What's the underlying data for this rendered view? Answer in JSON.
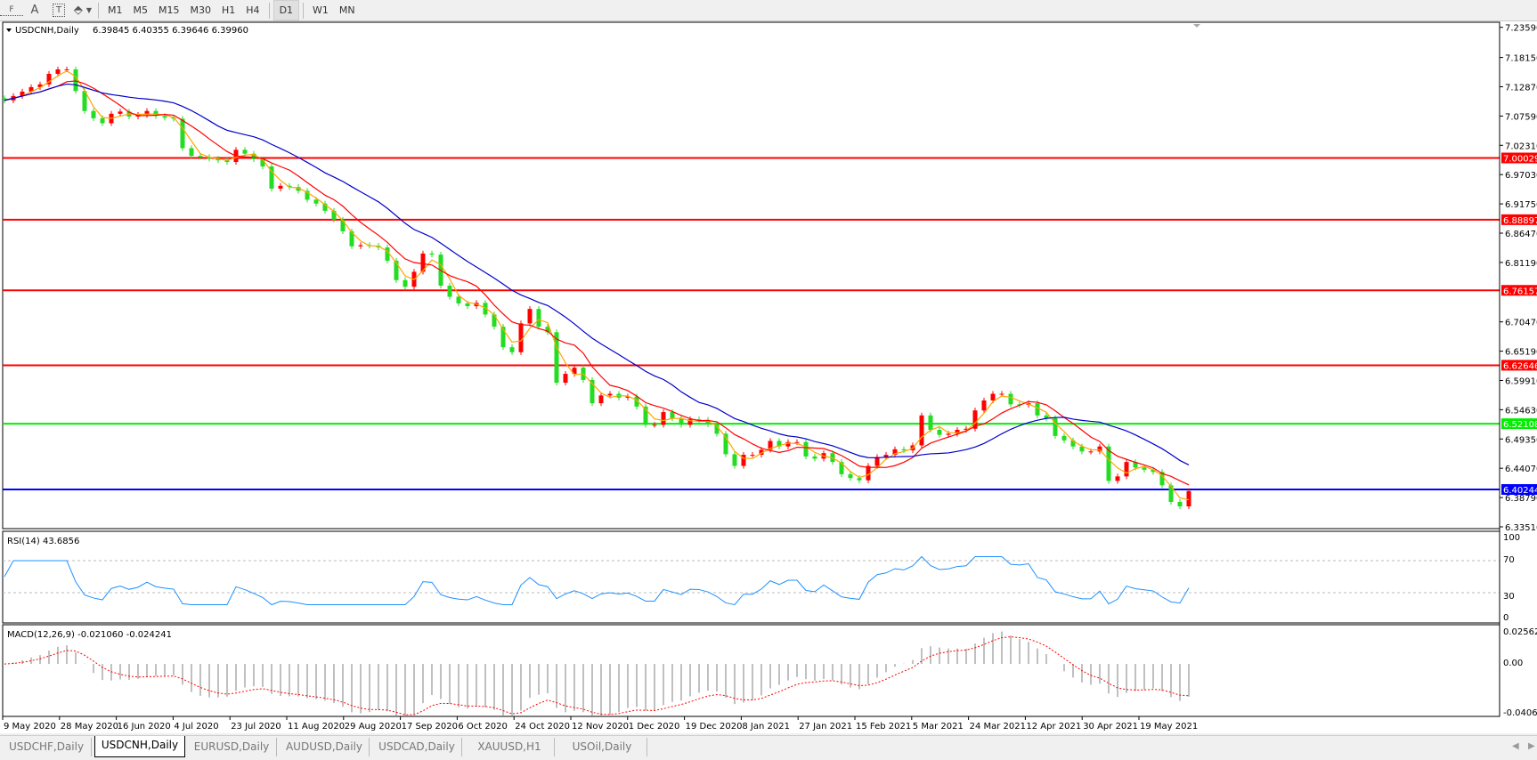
{
  "toolbar": {
    "tools": [
      {
        "icon": "text-label-icon",
        "glyph": "F"
      },
      {
        "icon": "text-icon",
        "glyph": "A"
      },
      {
        "icon": "text-box-icon",
        "glyph": "T"
      },
      {
        "icon": "arrows-icon",
        "glyph": "⬘"
      }
    ],
    "timeframes": [
      "M1",
      "M5",
      "M15",
      "M30",
      "H1",
      "H4",
      "D1",
      "W1",
      "MN"
    ],
    "active_timeframe": "D1"
  },
  "chart_header": {
    "symbol": "USDCNH,Daily",
    "ohlc": "6.39845 6.40355 6.39646 6.39960"
  },
  "colors": {
    "bull_candle": "#ff0000",
    "bear_candle": "#22dd22",
    "ma_fast": "#ffa500",
    "ma_mid": "#ff0000",
    "ma_slow": "#0000cc",
    "rsi_line": "#1e90ff",
    "macd_hist": "#c0c0c0",
    "macd_signal": "#ff0000"
  },
  "chart_data": {
    "type": "candlestick",
    "symbol": "USDCNH",
    "timeframe": "Daily",
    "close_sampled_every_2_bars": [
      7.104,
      7.112,
      7.12,
      7.128,
      7.133,
      7.152,
      7.16,
      7.16,
      7.121,
      7.085,
      7.072,
      7.063,
      7.08,
      7.084,
      7.075,
      7.078,
      7.085,
      7.076,
      7.073,
      7.071,
      7.018,
      7.004,
      7.002,
      6.999,
      6.996,
      6.993,
      7.015,
      7.008,
      6.998,
      6.985,
      6.945,
      6.95,
      6.948,
      6.941,
      6.925,
      6.918,
      6.905,
      6.889,
      6.868,
      6.841,
      6.843,
      6.842,
      6.839,
      6.815,
      6.78,
      6.768,
      6.795,
      6.828,
      6.826,
      6.77,
      6.75,
      6.738,
      6.733,
      6.739,
      6.718,
      6.696,
      6.659,
      6.65,
      6.702,
      6.728,
      6.696,
      6.686,
      6.595,
      6.611,
      6.622,
      6.6,
      6.558,
      6.572,
      6.575,
      6.568,
      6.57,
      6.552,
      6.519,
      6.519,
      6.542,
      6.531,
      6.519,
      6.529,
      6.528,
      6.52,
      6.503,
      6.466,
      6.445,
      6.465,
      6.465,
      6.474,
      6.49,
      6.48,
      6.488,
      6.488,
      6.462,
      6.458,
      6.468,
      6.452,
      6.43,
      6.423,
      6.419,
      6.445,
      6.461,
      6.465,
      6.475,
      6.473,
      6.482,
      6.536,
      6.51,
      6.501,
      6.503,
      6.51,
      6.512,
      6.545,
      6.563,
      6.575,
      6.575,
      6.556,
      6.555,
      6.558,
      6.536,
      6.531,
      6.499,
      6.491,
      6.48,
      6.471,
      6.471,
      6.48,
      6.418,
      6.426,
      6.452,
      6.442,
      6.438,
      6.434,
      6.41,
      6.38,
      6.372,
      6.3996
    ],
    "y_range": [
      6.3351,
      7.2359
    ],
    "price_ticks": [
      "7.23590",
      "7.18150",
      "7.12870",
      "7.07590",
      "7.02310",
      "6.97030",
      "6.91750",
      "6.86470",
      "6.81190",
      "6.70470",
      "6.65190",
      "6.59910",
      "6.54630",
      "6.49350",
      "6.44070",
      "6.38790",
      "6.33510"
    ],
    "horizontal_levels": [
      {
        "value": "7.00029",
        "color": "#ff0000"
      },
      {
        "value": "6.88897",
        "color": "#ff0000"
      },
      {
        "value": "6.76157",
        "color": "#ff0000"
      },
      {
        "value": "6.62646",
        "color": "#ff0000"
      },
      {
        "value": "6.52108",
        "color": "#00ee00"
      },
      {
        "value": "6.40244",
        "color": "#0000ff"
      }
    ],
    "date_ticks": [
      "9 May 2020",
      "28 May 2020",
      "16 Jun 2020",
      "4 Jul 2020",
      "23 Jul 2020",
      "11 Aug 2020",
      "29 Aug 2020",
      "17 Sep 2020",
      "6 Oct 2020",
      "24 Oct 2020",
      "12 Nov 2020",
      "1 Dec 2020",
      "19 Dec 2020",
      "8 Jan 2021",
      "27 Jan 2021",
      "15 Feb 2021",
      "5 Mar 2021",
      "24 Mar 2021",
      "12 Apr 2021",
      "30 Apr 2021",
      "19 May 2021"
    ],
    "rsi": {
      "label": "RSI(14) 43.6856",
      "ticks": [
        "100",
        "70",
        "30",
        "0"
      ],
      "levels": [
        70,
        30
      ]
    },
    "macd": {
      "label": "MACD(12,26,9) -0.021060 -0.024241",
      "ticks": [
        "0.025623",
        "0.00",
        "-0.040687"
      ],
      "range": [
        -0.040687,
        0.025623
      ]
    }
  },
  "tabs": [
    {
      "label": "USDCHF,Daily",
      "active": false
    },
    {
      "label": "USDCNH,Daily",
      "active": true
    },
    {
      "label": "EURUSD,Daily",
      "active": false
    },
    {
      "label": "AUDUSD,Daily",
      "active": false
    },
    {
      "label": "USDCAD,Daily",
      "active": false
    },
    {
      "label": "XAUUSD,H1",
      "active": false
    },
    {
      "label": "USOil,Daily",
      "active": false
    }
  ]
}
